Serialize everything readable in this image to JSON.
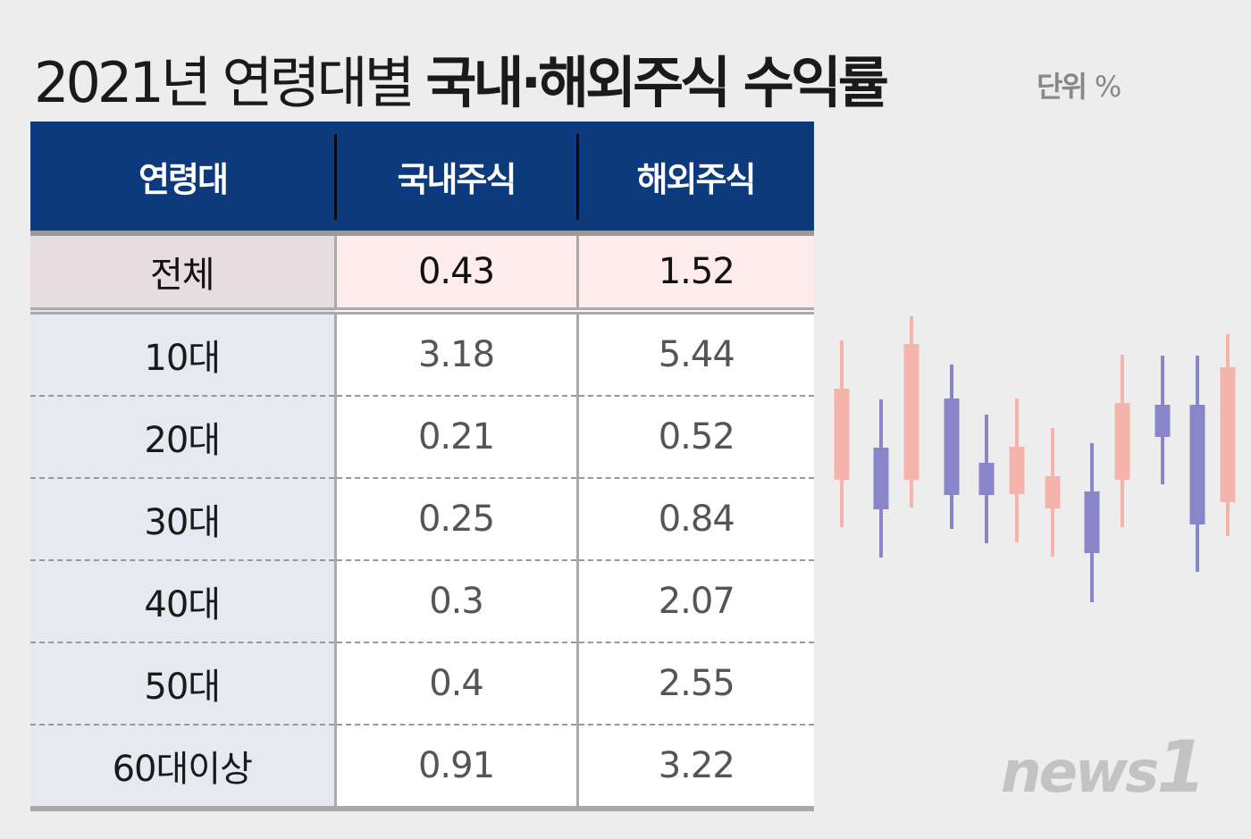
{
  "title": {
    "year": "2021년 연령대별",
    "bold": "국내·해외주식 수익률"
  },
  "unit": {
    "label": "단위",
    "value": "%"
  },
  "chart_data": {
    "type": "table",
    "columns": [
      "연령대",
      "국내주식",
      "해외주식"
    ],
    "rows": [
      [
        "전체",
        "0.43",
        "1.52"
      ],
      [
        "10대",
        "3.18",
        "5.44"
      ],
      [
        "20대",
        "0.21",
        "0.52"
      ],
      [
        "30대",
        "0.25",
        "0.84"
      ],
      [
        "40대",
        "0.3",
        "2.07"
      ],
      [
        "50대",
        "0.4",
        "2.55"
      ],
      [
        "60대이상",
        "0.91",
        "3.22"
      ]
    ]
  },
  "colors": {
    "header": "#0c3a7c",
    "candle_up": "#f4b3ab",
    "candle_down": "#8886c8"
  },
  "logo": "news1"
}
